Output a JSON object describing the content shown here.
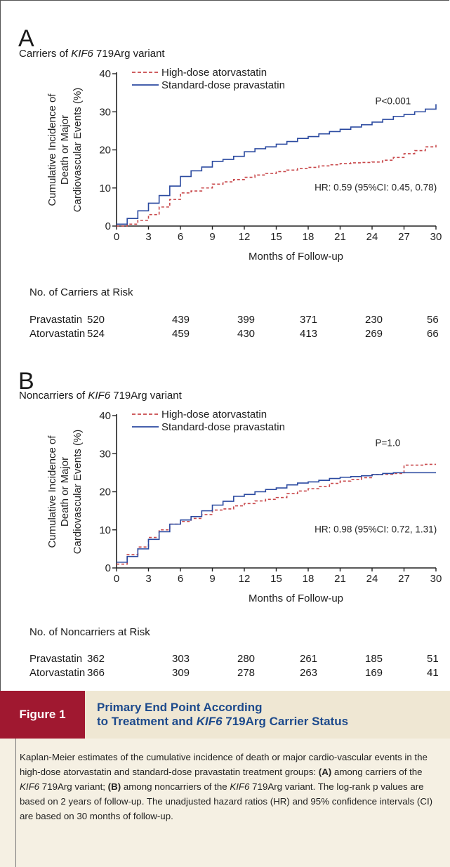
{
  "chart_data": [
    {
      "type": "line",
      "panel": "A",
      "subtitle_pre": "Carriers of ",
      "subtitle_gene": "KIF6",
      "subtitle_post": " 719Arg variant",
      "ylabel_lines": [
        "Cumulative Incidence of",
        "Death or Major",
        "Cardiovascular Events (%)"
      ],
      "xlabel": "Months of Follow-up",
      "xticks": [
        0,
        3,
        6,
        9,
        12,
        15,
        18,
        21,
        24,
        27,
        30
      ],
      "xtick_labels": [
        "0",
        "3",
        "6",
        "9",
        "12",
        "15",
        "18",
        "21",
        "24",
        "27",
        "30"
      ],
      "yticks": [
        0,
        10,
        20,
        30,
        40
      ],
      "ytick_labels": [
        "0",
        "10",
        "20",
        "30",
        "40"
      ],
      "xlim": [
        0,
        30
      ],
      "ylim": [
        0,
        40
      ],
      "legend": "top-left",
      "pvalue": "P<0.001",
      "hr": "HR: 0.59 (95%CI: 0.45, 0.78)",
      "series": [
        {
          "name": "High-dose atorvastatin",
          "color": "#c8474a",
          "dash": true,
          "x": [
            0,
            1,
            2,
            3,
            4,
            5,
            6,
            7,
            8,
            9,
            10,
            11,
            12,
            13,
            14,
            15,
            16,
            17,
            18,
            19,
            20,
            21,
            22,
            23,
            24,
            25,
            26,
            27,
            28,
            29,
            30
          ],
          "y": [
            0,
            0.5,
            1.5,
            3,
            5,
            7,
            8.7,
            9.2,
            10,
            11,
            11.6,
            12.2,
            12.8,
            13.4,
            13.8,
            14.3,
            14.7,
            15.1,
            15.4,
            15.8,
            16.1,
            16.4,
            16.6,
            16.7,
            16.8,
            17.3,
            18,
            19,
            19.8,
            20.8,
            21.3
          ]
        },
        {
          "name": "Standard-dose pravastatin",
          "color": "#2b4aa0",
          "dash": false,
          "x": [
            0,
            1,
            2,
            3,
            4,
            5,
            6,
            7,
            8,
            9,
            10,
            11,
            12,
            13,
            14,
            15,
            16,
            17,
            18,
            19,
            20,
            21,
            22,
            23,
            24,
            25,
            26,
            27,
            28,
            29,
            30
          ],
          "y": [
            0.5,
            2,
            4,
            6,
            8,
            10.5,
            13,
            14.5,
            15.5,
            17,
            17.5,
            18.3,
            19.5,
            20.3,
            20.8,
            21.5,
            22.2,
            23,
            23.5,
            24.2,
            24.8,
            25.4,
            26,
            26.6,
            27.3,
            28,
            28.8,
            29.3,
            30,
            30.7,
            32
          ]
        }
      ]
    },
    {
      "type": "line",
      "panel": "B",
      "subtitle_pre": "Noncarriers of ",
      "subtitle_gene": "KIF6",
      "subtitle_post": " 719Arg variant",
      "ylabel_lines": [
        "Cumulative Incidence of",
        "Death or Major",
        "Cardiovascular Events (%)"
      ],
      "xlabel": "Months of Follow-up",
      "xticks": [
        0,
        3,
        6,
        9,
        12,
        15,
        18,
        21,
        24,
        27,
        30
      ],
      "xtick_labels": [
        "0",
        "3",
        "6",
        "9",
        "12",
        "15",
        "18",
        "21",
        "24",
        "27",
        "30"
      ],
      "yticks": [
        0,
        10,
        20,
        30,
        40
      ],
      "ytick_labels": [
        "0",
        "10",
        "20",
        "30",
        "40"
      ],
      "xlim": [
        0,
        30
      ],
      "ylim": [
        0,
        40
      ],
      "legend": "top-left",
      "pvalue": "P=1.0",
      "hr": "HR: 0.98 (95%CI: 0.72, 1.31)",
      "series": [
        {
          "name": "High-dose atorvastatin",
          "color": "#c8474a",
          "dash": true,
          "x": [
            0,
            1,
            2,
            3,
            4,
            5,
            6,
            7,
            8,
            9,
            10,
            11,
            12,
            13,
            14,
            15,
            16,
            17,
            18,
            19,
            20,
            21,
            22,
            23,
            24,
            25,
            26,
            27,
            28,
            29,
            30
          ],
          "y": [
            1,
            3.5,
            5.5,
            8,
            10,
            11.5,
            12.2,
            13,
            14,
            15.2,
            15.5,
            16.3,
            16.9,
            17.6,
            18,
            18.5,
            19.5,
            20.2,
            20.8,
            21.4,
            22.2,
            22.8,
            23.2,
            23.7,
            24.5,
            24.6,
            24.8,
            27,
            27,
            27.2,
            27.2
          ]
        },
        {
          "name": "Standard-dose pravastatin",
          "color": "#2b4aa0",
          "dash": false,
          "x": [
            0,
            1,
            2,
            3,
            4,
            5,
            6,
            7,
            8,
            9,
            10,
            11,
            12,
            13,
            14,
            15,
            16,
            17,
            18,
            19,
            20,
            21,
            22,
            23,
            24,
            25,
            26,
            27,
            28,
            29,
            30
          ],
          "y": [
            1.5,
            3,
            5,
            7.5,
            9.5,
            11.5,
            12.6,
            13.5,
            15,
            16.5,
            17.5,
            18.8,
            19.3,
            20,
            20.6,
            21,
            21.8,
            22.3,
            22.6,
            23,
            23.5,
            23.8,
            24,
            24.2,
            24.5,
            24.8,
            25,
            25,
            25,
            25,
            25
          ]
        }
      ]
    }
  ],
  "riskA": {
    "title": "No. of Carriers at Risk",
    "rows": [
      {
        "label": "Pravastatin",
        "values": [
          "520",
          "439",
          "399",
          "371",
          "230",
          "56"
        ]
      },
      {
        "label": "Atorvastatin",
        "values": [
          "524",
          "459",
          "430",
          "413",
          "269",
          "66"
        ]
      }
    ]
  },
  "riskB": {
    "title": "No. of Noncarriers at Risk",
    "rows": [
      {
        "label": "Pravastatin",
        "values": [
          "362",
          "303",
          "280",
          "261",
          "185",
          "51"
        ]
      },
      {
        "label": "Atorvastatin",
        "values": [
          "366",
          "309",
          "278",
          "263",
          "169",
          "41"
        ]
      }
    ]
  },
  "figure": {
    "label": "Figure 1",
    "title_line1": "Primary End Point According",
    "title_line2_pre": "to Treatment and ",
    "title_line2_gene": "KIF6",
    "title_line2_post": " 719Arg Carrier Status",
    "label_color": "#a01830",
    "title_color": "#1d4a8c"
  },
  "caption": {
    "p1": "Kaplan-Meier estimates of the cumulative incidence of death or major cardio-vascular events in the high-dose atorvastatin and standard-dose pravastatin treatment groups: ",
    "a_label": "(A)",
    "p2": " among carriers of the ",
    "gene1": "KIF6",
    "p3": " 719Arg variant; ",
    "b_label": "(B)",
    "p4": " among noncarriers of the ",
    "gene2": "KIF6",
    "p5": " 719Arg variant. The log-rank p values are based on 2 years of follow-up. The unadjusted hazard ratios (HR) and 95% confidence intervals (CI) are based on 30 months of follow-up."
  }
}
